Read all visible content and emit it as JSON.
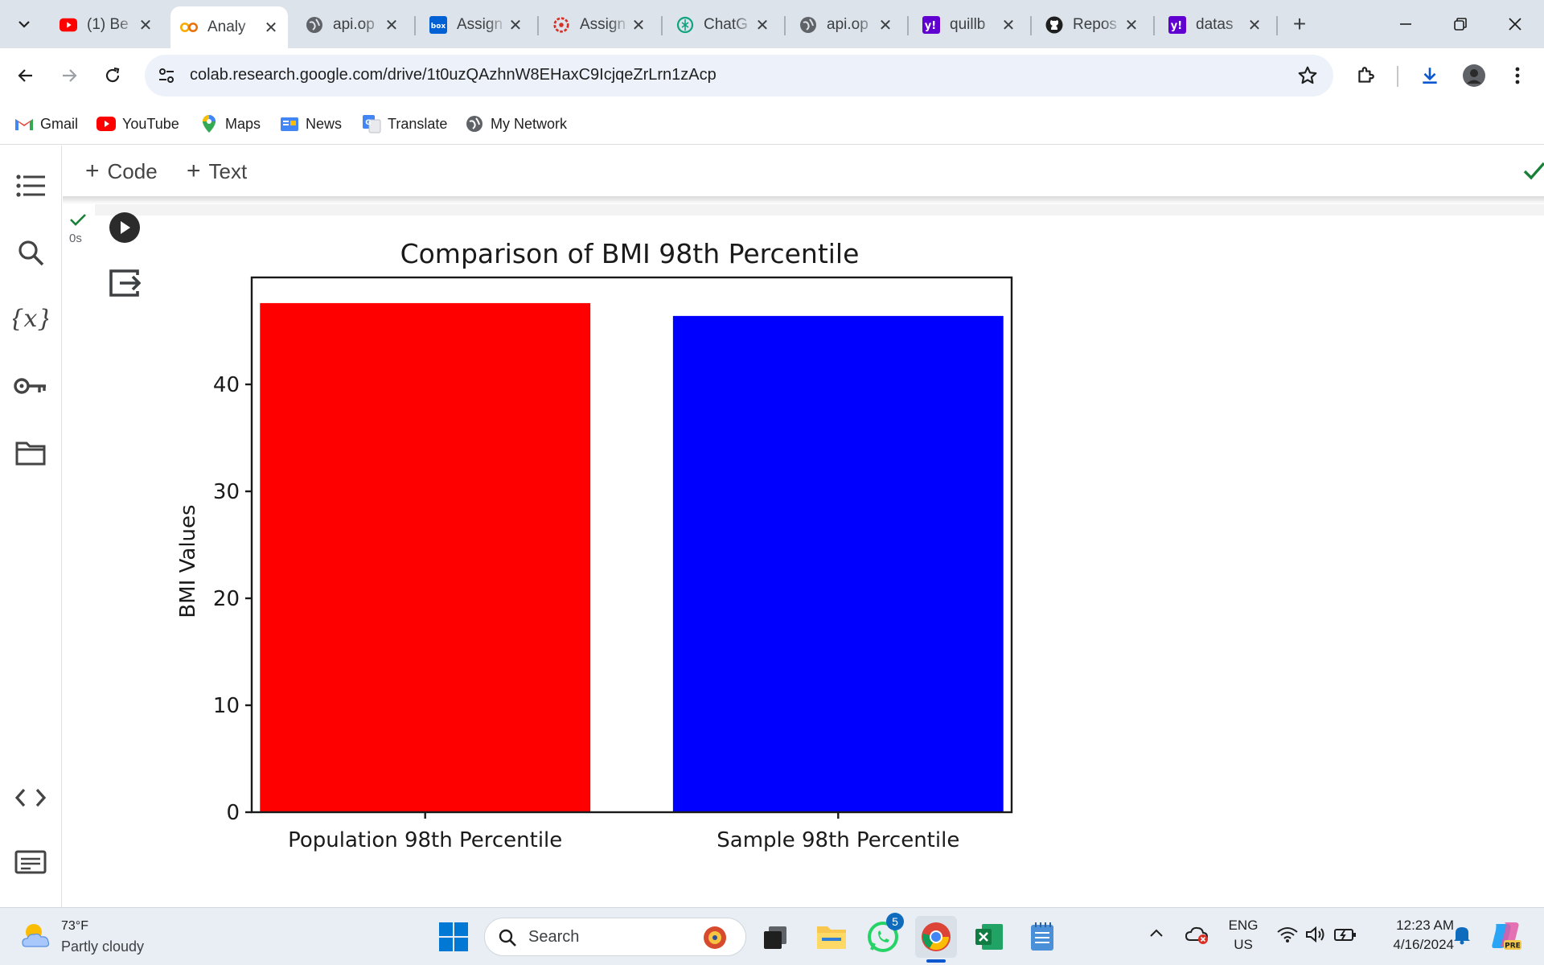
{
  "browser": {
    "tabs": [
      {
        "title": "(1) Be",
        "favicon": "youtube-icon"
      },
      {
        "title": "Analy",
        "favicon": "colab-icon",
        "active": true
      },
      {
        "title": "api.op",
        "favicon": "globe-icon"
      },
      {
        "title": "Assign",
        "favicon": "box-icon"
      },
      {
        "title": "Assign",
        "favicon": "settings-wheel-icon"
      },
      {
        "title": "ChatG",
        "favicon": "chatgpt-icon"
      },
      {
        "title": "api.op",
        "favicon": "globe-icon"
      },
      {
        "title": "quillb",
        "favicon": "yahoo-icon"
      },
      {
        "title": "Repos",
        "favicon": "github-icon"
      },
      {
        "title": "datas",
        "favicon": "yahoo-icon"
      }
    ],
    "url": "colab.research.google.com/drive/1t0uzQAzhnW8EHaxC9IcjqeZrLrn1zAcp",
    "bookmarks": [
      {
        "label": "Gmail",
        "icon": "gmail-icon"
      },
      {
        "label": "YouTube",
        "icon": "youtube-icon"
      },
      {
        "label": "Maps",
        "icon": "maps-icon"
      },
      {
        "label": "News",
        "icon": "news-icon"
      },
      {
        "label": "Translate",
        "icon": "translate-icon"
      },
      {
        "label": "My Network",
        "icon": "globe-icon"
      }
    ]
  },
  "colab": {
    "toolbar": {
      "add_code": "Code",
      "add_text": "Text"
    },
    "cell": {
      "exec_time": "0s",
      "status": "check-icon"
    }
  },
  "chart_data": {
    "type": "bar",
    "title": "Comparison of BMI 98th Percentile",
    "xlabel": "",
    "ylabel": "BMI Values",
    "categories": [
      "Population 98th Percentile",
      "Sample 98th Percentile"
    ],
    "values": [
      47.6,
      46.4
    ],
    "colors": [
      "#ff0000",
      "#0000ff"
    ],
    "ylim": [
      0,
      50
    ],
    "yticks": [
      0,
      10,
      20,
      30,
      40
    ],
    "grid": false
  },
  "taskbar": {
    "weather_temp": "73°F",
    "weather_desc": "Partly cloudy",
    "search_label": "Search",
    "whatsapp_badge": "5",
    "lang_line1": "ENG",
    "lang_line2": "US",
    "time": "12:23 AM",
    "date": "4/16/2024"
  },
  "colors": {
    "tabstrip": "#dde3ea",
    "omnibox": "#edf2fa",
    "accent_blue": "#0b57d0",
    "check_green": "#188038"
  }
}
